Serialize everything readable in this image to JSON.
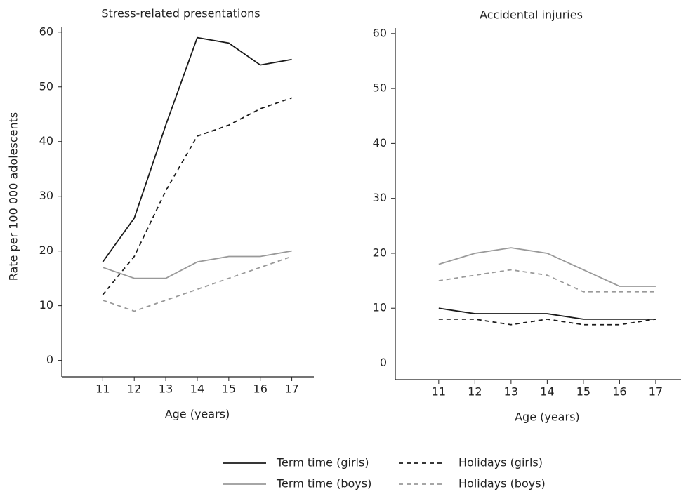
{
  "chart_data": [
    {
      "type": "line",
      "title": "Stress-related presentations",
      "x_label": "Age (years)",
      "y_label": "Rate per 100 000 adolescents",
      "x": [
        11,
        12,
        13,
        14,
        15,
        16,
        17
      ],
      "xlim": [
        9.7,
        17.7
      ],
      "xticks": [
        11,
        12,
        13,
        14,
        15,
        16,
        17
      ],
      "ylim": [
        -3,
        61
      ],
      "yticks": [
        0,
        10,
        20,
        30,
        40,
        50,
        60
      ],
      "series": [
        {
          "name": "Term time (girls)",
          "color": "#1a1a1a",
          "dashed": false,
          "values": [
            18,
            26,
            43,
            59,
            58,
            54,
            55
          ]
        },
        {
          "name": "Holidays (girls)",
          "color": "#1a1a1a",
          "dashed": true,
          "values": [
            12,
            19,
            31,
            41,
            43,
            46,
            48
          ]
        },
        {
          "name": "Term time (boys)",
          "color": "#999999",
          "dashed": false,
          "values": [
            17,
            15,
            15,
            18,
            19,
            19,
            20
          ]
        },
        {
          "name": "Holidays (boys)",
          "color": "#999999",
          "dashed": true,
          "values": [
            11,
            9,
            11,
            13,
            15,
            17,
            19
          ]
        }
      ]
    },
    {
      "type": "line",
      "title": "Accidental injuries",
      "x_label": "Age (years)",
      "x": [
        11,
        12,
        13,
        14,
        15,
        16,
        17
      ],
      "xlim": [
        9.8,
        17.7
      ],
      "xticks": [
        11,
        12,
        13,
        14,
        15,
        16,
        17
      ],
      "ylim": [
        -3,
        61
      ],
      "yticks": [
        0,
        10,
        20,
        30,
        40,
        50,
        60
      ],
      "series": [
        {
          "color": "#1a1a1a",
          "dashed": false,
          "values": [
            10,
            9,
            9,
            9,
            8,
            8,
            8
          ]
        },
        {
          "color": "#1a1a1a",
          "dashed": true,
          "values": [
            8,
            8,
            7,
            8,
            7,
            7,
            8
          ]
        },
        {
          "color": "#999999",
          "dashed": false,
          "values": [
            18,
            20,
            21,
            20,
            17,
            14,
            14
          ]
        },
        {
          "color": "#999999",
          "dashed": true,
          "values": [
            15,
            16,
            17,
            16,
            13,
            13,
            13
          ]
        }
      ]
    }
  ]
}
